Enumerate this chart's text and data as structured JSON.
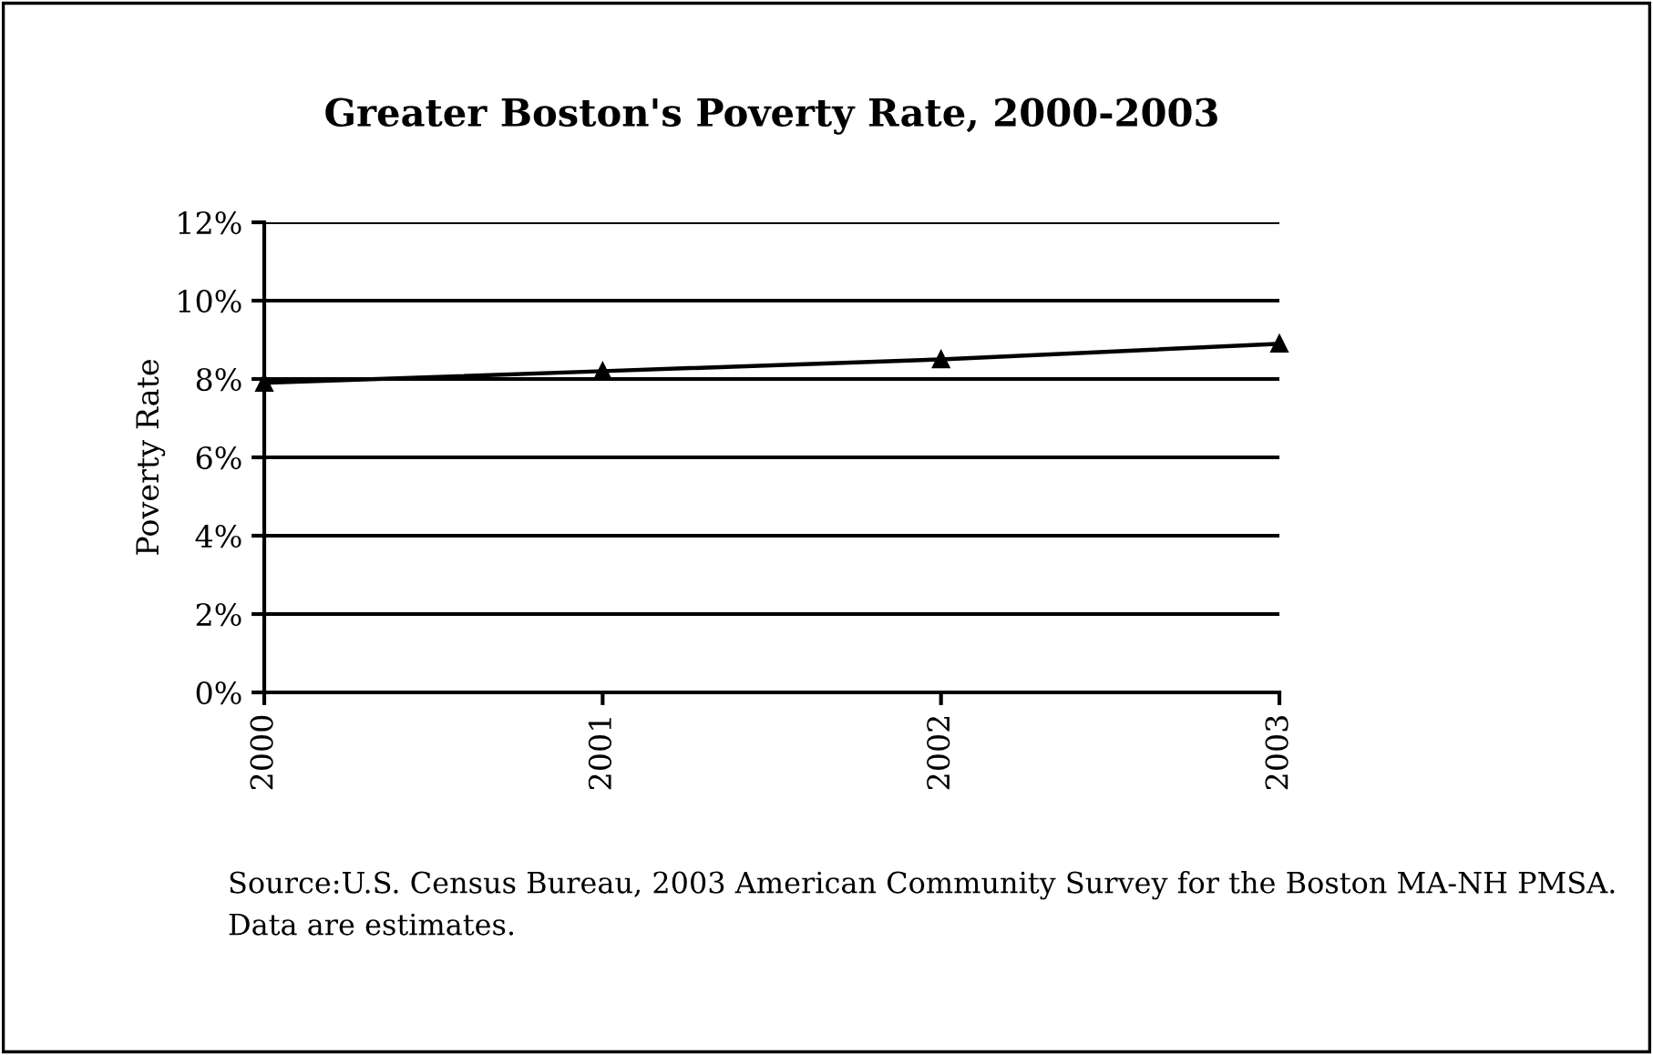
{
  "chart_data": {
    "type": "line",
    "title": "Greater Boston's Poverty Rate, 2000-2003",
    "ylabel": "Poverty Rate",
    "categories": [
      "2000",
      "2001",
      "2002",
      "2003"
    ],
    "series": [
      {
        "color": "#000000",
        "values": [
          7.9,
          8.2,
          8.5,
          8.9
        ]
      }
    ],
    "ylim": [
      0,
      12
    ],
    "yticks": [
      {
        "value": 0,
        "label": "0%"
      },
      {
        "value": 2,
        "label": "2%"
      },
      {
        "value": 4,
        "label": "4%"
      },
      {
        "value": 6,
        "label": "6%"
      },
      {
        "value": 8,
        "label": "8%"
      },
      {
        "value": 10,
        "label": "10%"
      },
      {
        "value": 12,
        "label": "12%"
      }
    ],
    "grid": "y",
    "marker": "triangle",
    "line_style": "solid",
    "annotations": [
      "Source:U.S. Census Bureau, 2003 American Community Survey for the Boston MA-NH PMSA. Data are estimates."
    ]
  }
}
